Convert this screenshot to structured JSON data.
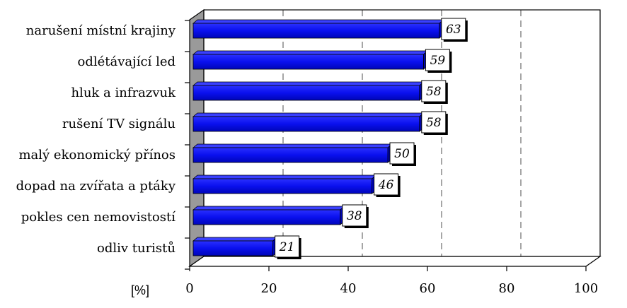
{
  "chart_data": {
    "type": "bar",
    "orientation": "horizontal",
    "categories": [
      "narušení místní krajiny",
      "odlétávající led",
      "hluk a infrazvuk",
      "rušení TV signálu",
      "malý ekonomický přínos",
      "dopad na zvířata a ptáky",
      "pokles cen nemovistostí",
      "odliv turistů"
    ],
    "values": [
      63,
      59,
      58,
      58,
      50,
      46,
      38,
      21
    ],
    "data_labels": [
      "63",
      "59",
      "58",
      "58",
      "50",
      "46",
      "38",
      "21"
    ],
    "xlim": [
      0,
      100
    ],
    "xticks": [
      "0",
      "20",
      "40",
      "60",
      "80",
      "100"
    ],
    "xlabel": "[%]",
    "title": "",
    "grid": "vertical dashed",
    "bar_color": "#0a10ee",
    "wall_color": "#9a9a9a",
    "style": "3d"
  }
}
